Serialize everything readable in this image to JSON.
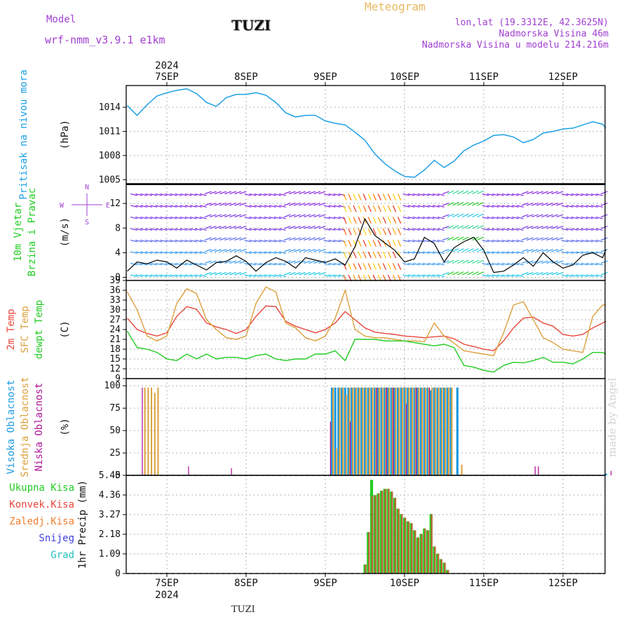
{
  "header": {
    "model_label": "Model",
    "model_name": "wrf-nmm_v3.9.1  e1km",
    "station": "TUZI",
    "product": "Meteogram",
    "coords": "lon,lat (19.3312E, 42.3625N)",
    "elevation": "Nadmorska Visina 46m",
    "model_elevation": "Nadmorska Visina u modelu 214.216m",
    "credit": "made by Angel",
    "footer_station": "TUZI"
  },
  "colors": {
    "pressure": "#1ea0e6",
    "temp2m": "#e8473c",
    "sfc_temp": "#dca03c",
    "dewpt": "#22cc22",
    "cloud_high": "#1e9be0",
    "cloud_mid": "#dca03c",
    "cloud_low": "#b0189a",
    "precip_total": "#22cc22",
    "precip_conv": "#e8473c",
    "label_purple": "#a040d0",
    "product": "#e8b860"
  },
  "time_axis": {
    "top_year": "2024",
    "bottom_year": "2024",
    "days": [
      "7SEP",
      "8SEP",
      "9SEP",
      "10SEP",
      "11SEP",
      "12SEP"
    ],
    "start_hours_before_first_day": 12,
    "end_hours_after_last_day": 13
  },
  "panels": [
    {
      "id": "pressure",
      "labels": [
        {
          "text": "Pritisak na nivou mora",
          "color": "#1ea0e6"
        }
      ],
      "unit": "(hPa)",
      "ylim": [
        1004.5,
        1016.7
      ],
      "ticks": [
        "1005",
        "1008",
        "1011",
        "1014"
      ]
    },
    {
      "id": "wind",
      "labels": [
        {
          "text": "10m Vjetar",
          "color": "#22cc22"
        },
        {
          "text": "Brzina i Pravac",
          "color": "#22cc22"
        }
      ],
      "unit": "(m/s)",
      "ylim": [
        -0.5,
        15.2
      ],
      "ticks": [
        "0",
        "4",
        "8",
        "12"
      ],
      "compass_n": "N",
      "compass_s": "S",
      "compass_w": "W",
      "compass_e": "E"
    },
    {
      "id": "temperature",
      "labels": [
        {
          "text": "2m Temp",
          "color": "#e8473c"
        },
        {
          "text": "SFC Temp",
          "color": "#dca03c"
        },
        {
          "text": "dewpt Temp",
          "color": "#22cc22"
        }
      ],
      "unit": "(C)",
      "ylim": [
        9,
        39
      ],
      "ticks": [
        "9",
        "12",
        "15",
        "18",
        "21",
        "24",
        "27",
        "30",
        "33",
        "36",
        "39"
      ]
    },
    {
      "id": "clouds",
      "labels": [
        {
          "text": "Visoka Oblacnost",
          "color": "#1e9be0"
        },
        {
          "text": "Srednja Oblacnost",
          "color": "#dca03c"
        },
        {
          "text": "Niska Oblacnost",
          "color": "#b0189a"
        }
      ],
      "unit": "(%)",
      "ylim": [
        0,
        108
      ],
      "ticks": [
        "0",
        "25",
        "50",
        "75",
        "100"
      ]
    },
    {
      "id": "precip",
      "labels": [
        {
          "text": "Ukupna Kisa",
          "color": "#22cc22"
        },
        {
          "text": "Konvek.Kisa",
          "color": "#e8473c"
        },
        {
          "text": "Zaledj.Kisa",
          "color": "#f08030"
        },
        {
          "text": "Snijeg",
          "color": "#4040e0"
        },
        {
          "text": "Grad",
          "color": "#20c0c0"
        }
      ],
      "unit": "1hr Precip (mm)",
      "ylim": [
        0,
        5.45
      ],
      "ticks": [
        "0",
        "1.09",
        "2.18",
        "3.27",
        "4.36",
        "5.45"
      ]
    }
  ],
  "chart_data": [
    {
      "type": "line",
      "title": "Pritisak na nivou mora",
      "ylabel": "(hPa)",
      "ylim": [
        1004.5,
        1016.7
      ],
      "x_hours": [
        -12,
        -9,
        -6,
        -3,
        0,
        3,
        6,
        9,
        12,
        15,
        18,
        21,
        24,
        27,
        30,
        33,
        36,
        39,
        42,
        45,
        48,
        51,
        54,
        57,
        60,
        63,
        66,
        69,
        72,
        75,
        78,
        81,
        84,
        87,
        90,
        93,
        96,
        99,
        102,
        105,
        108,
        111,
        114,
        117,
        120,
        123,
        126,
        129,
        132,
        133
      ],
      "series": [
        {
          "name": "Pritisak na nivou mora",
          "values": [
            1014.2,
            1013.0,
            1014.3,
            1015.4,
            1015.8,
            1016.1,
            1016.3,
            1015.7,
            1014.6,
            1014.1,
            1015.2,
            1015.6,
            1015.6,
            1015.8,
            1015.5,
            1014.6,
            1013.3,
            1012.8,
            1013.0,
            1013.0,
            1012.3,
            1012.0,
            1011.8,
            1010.9,
            1009.9,
            1008.2,
            1007.0,
            1006.1,
            1005.4,
            1005.3,
            1006.2,
            1007.4,
            1006.5,
            1007.3,
            1008.6,
            1009.3,
            1009.8,
            1010.5,
            1010.6,
            1010.3,
            1009.6,
            1010.0,
            1010.8,
            1011.0,
            1011.3,
            1011.4,
            1011.8,
            1012.2,
            1011.9,
            1011.4
          ]
        }
      ]
    },
    {
      "type": "line",
      "title": "10m Vjetar Brzina i Pravac",
      "ylabel": "(m/s)",
      "ylim": [
        -0.5,
        15.2
      ],
      "x_hours": [
        -12,
        -9,
        -6,
        -3,
        0,
        3,
        6,
        9,
        12,
        15,
        18,
        21,
        24,
        27,
        30,
        33,
        36,
        39,
        42,
        45,
        48,
        51,
        54,
        57,
        60,
        63,
        66,
        69,
        72,
        75,
        78,
        81,
        84,
        87,
        90,
        93,
        96,
        99,
        102,
        105,
        108,
        111,
        114,
        117,
        120,
        123,
        126,
        129,
        132,
        133
      ],
      "series": [
        {
          "name": "speed",
          "values": [
            1.0,
            2.5,
            2.2,
            2.8,
            2.5,
            1.5,
            2.8,
            2.0,
            1.2,
            2.4,
            2.6,
            3.5,
            2.6,
            1.0,
            2.4,
            3.2,
            2.6,
            1.5,
            3.2,
            2.8,
            2.4,
            3.0,
            2.0,
            5.0,
            9.5,
            6.8,
            5.6,
            4.4,
            2.5,
            3.0,
            6.5,
            5.5,
            2.5,
            4.8,
            5.8,
            6.5,
            4.4,
            0.8,
            1.0,
            2.0,
            3.2,
            1.8,
            4.0,
            2.5,
            1.5,
            2.0,
            3.6,
            4.0,
            3.2,
            4.5
          ]
        }
      ]
    },
    {
      "type": "line",
      "title": "Temperature",
      "ylabel": "(C)",
      "ylim": [
        9,
        39
      ],
      "x_hours": [
        -12,
        -9,
        -6,
        -3,
        0,
        3,
        6,
        9,
        12,
        15,
        18,
        21,
        24,
        27,
        30,
        33,
        36,
        39,
        42,
        45,
        48,
        51,
        54,
        57,
        60,
        63,
        66,
        69,
        72,
        75,
        78,
        81,
        84,
        87,
        90,
        93,
        96,
        99,
        102,
        105,
        108,
        111,
        114,
        117,
        120,
        123,
        126,
        129,
        132,
        133
      ],
      "series": [
        {
          "name": "2m Temp",
          "values": [
            27.5,
            24.0,
            22.8,
            22.0,
            23.0,
            28.0,
            31.0,
            30.2,
            26.0,
            24.8,
            24.0,
            22.8,
            24.0,
            28.0,
            31.2,
            31.0,
            26.5,
            25.0,
            24.0,
            23.0,
            24.0,
            26.0,
            29.5,
            27.0,
            24.5,
            23.2,
            22.8,
            22.5,
            22.0,
            21.8,
            21.5,
            21.8,
            22.0,
            21.2,
            19.5,
            18.8,
            18.0,
            17.5,
            20.5,
            24.5,
            27.5,
            27.8,
            26.0,
            25.0,
            22.5,
            22.0,
            22.5,
            24.5,
            26.0,
            26.5
          ]
        },
        {
          "name": "SFC Temp",
          "values": [
            35.5,
            30.0,
            22.0,
            20.5,
            22.0,
            32.0,
            36.5,
            35.0,
            27.0,
            24.0,
            21.5,
            21.0,
            22.0,
            32.0,
            37.0,
            35.5,
            26.0,
            24.5,
            21.5,
            20.5,
            22.0,
            27.5,
            36.0,
            24.0,
            22.0,
            21.5,
            21.5,
            21.0,
            20.5,
            20.5,
            20.3,
            26.0,
            22.0,
            19.8,
            17.5,
            17.0,
            16.5,
            16.0,
            23.0,
            31.5,
            32.5,
            27.0,
            21.5,
            20.0,
            18.0,
            17.5,
            17.0,
            28.0,
            31.5,
            31.5
          ]
        },
        {
          "name": "dewpt Temp",
          "values": [
            23.5,
            18.5,
            18.0,
            17.0,
            15.0,
            14.5,
            16.5,
            15.0,
            16.5,
            15.0,
            15.5,
            15.5,
            15.0,
            16.0,
            16.5,
            15.0,
            14.5,
            15.0,
            15.0,
            16.5,
            16.5,
            17.5,
            14.5,
            21.0,
            21.0,
            21.0,
            20.5,
            20.5,
            20.5,
            20.0,
            19.5,
            19.0,
            19.5,
            18.5,
            13.0,
            12.5,
            11.5,
            11.0,
            13.0,
            14.0,
            13.8,
            14.5,
            15.5,
            14.0,
            14.0,
            13.5,
            15.0,
            17.0,
            17.0,
            16.5
          ]
        }
      ]
    },
    {
      "type": "bar",
      "title": "Oblacnost",
      "ylabel": "(%)",
      "ylim": [
        0,
        108
      ],
      "series": [
        {
          "name": "Visoka Oblacnost",
          "x_hours": [
            50,
            51,
            52,
            53,
            54,
            55,
            56,
            57,
            58,
            59,
            60,
            61,
            62,
            63,
            64,
            65,
            66,
            67,
            68,
            69,
            70,
            71,
            72,
            73,
            74,
            75,
            76,
            77,
            78,
            79,
            80,
            81,
            82,
            83,
            84,
            85,
            86,
            88,
            133
          ],
          "values": [
            98,
            98,
            98,
            98,
            98,
            98,
            98,
            98,
            98,
            98,
            98,
            98,
            98,
            98,
            98,
            98,
            98,
            98,
            98,
            98,
            98,
            98,
            98,
            98,
            98,
            98,
            98,
            98,
            98,
            98,
            95,
            98,
            98,
            98,
            98,
            98,
            98,
            98,
            2
          ]
        },
        {
          "name": "Srednja Oblacnost",
          "x_hours": [
            -7,
            -6,
            -5,
            -4,
            -3,
            50,
            51,
            52,
            53,
            54,
            55,
            56,
            57,
            58,
            59,
            60,
            61,
            62,
            63,
            64,
            65,
            66,
            67,
            68,
            69,
            70,
            71,
            72,
            73,
            74,
            75,
            76,
            77,
            78,
            79,
            80,
            81,
            82,
            83,
            84,
            85,
            86,
            89
          ],
          "values": [
            98,
            98,
            98,
            92,
            98,
            98,
            30,
            98,
            98,
            90,
            98,
            98,
            98,
            98,
            98,
            98,
            98,
            98,
            98,
            98,
            98,
            98,
            98,
            98,
            98,
            98,
            98,
            98,
            98,
            98,
            98,
            98,
            98,
            98,
            98,
            98,
            98,
            98,
            98,
            98,
            98,
            98,
            12
          ]
        },
        {
          "name": "Niska Oblacnost",
          "x_hours": [
            -8,
            6,
            19,
            49,
            55,
            63,
            66,
            68,
            72,
            75,
            79,
            111,
            112,
            134
          ],
          "values": [
            98,
            10,
            8,
            60,
            60,
            98,
            98,
            98,
            80,
            98,
            98,
            10,
            10,
            5
          ]
        }
      ]
    },
    {
      "type": "bar",
      "title": "1hr Precip",
      "ylabel": "1hr Precip (mm)",
      "ylim": [
        0,
        5.45
      ],
      "x_hours": [
        60,
        61,
        62,
        63,
        64,
        65,
        66,
        67,
        68,
        69,
        70,
        71,
        72,
        73,
        74,
        75,
        76,
        77,
        78,
        79,
        80,
        81,
        82,
        83,
        84,
        85
      ],
      "series": [
        {
          "name": "Ukupna Kisa",
          "values": [
            0.5,
            2.3,
            5.2,
            4.35,
            4.45,
            4.6,
            4.7,
            4.7,
            4.55,
            4.2,
            3.6,
            3.3,
            3.1,
            2.9,
            2.8,
            2.4,
            2.0,
            2.2,
            2.5,
            2.4,
            3.3,
            1.5,
            1.1,
            0.8,
            0.6,
            0.2
          ]
        },
        {
          "name": "Konvek.Kisa",
          "values": [
            0.5,
            2.3,
            4.3,
            4.35,
            4.45,
            4.6,
            4.7,
            4.7,
            4.55,
            4.2,
            3.6,
            3.3,
            3.1,
            2.9,
            2.8,
            2.4,
            2.0,
            2.2,
            2.5,
            2.4,
            3.3,
            1.5,
            1.1,
            0.8,
            0.6,
            0.2
          ]
        }
      ]
    }
  ]
}
